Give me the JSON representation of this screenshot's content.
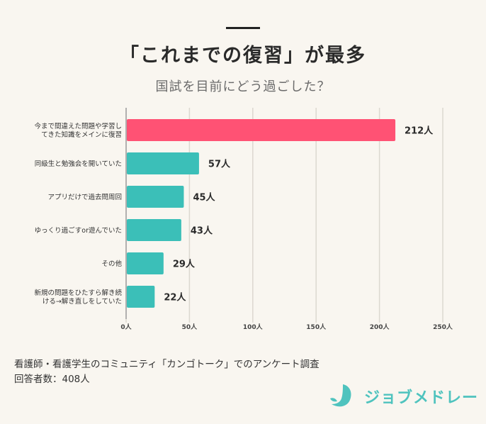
{
  "header": {
    "title": "「これまでの復習」が最多",
    "subtitle": "国試を目前にどう過ごした？"
  },
  "chart_data": {
    "type": "bar",
    "orientation": "horizontal",
    "categories": [
      [
        "今まで間違えた問題や学習し",
        "てきた知識をメインに復習"
      ],
      [
        "同級生と勉強会を開いていた"
      ],
      [
        "アプリだけで過去問周回"
      ],
      [
        "ゆっくり過ごすor遊んでいた"
      ],
      [
        "その他"
      ],
      [
        "新規の問題をひたすら解き続",
        "ける→解き直しをしていた"
      ]
    ],
    "values": [
      212,
      57,
      45,
      43,
      29,
      22
    ],
    "value_labels": [
      "212人",
      "57人",
      "45人",
      "43人",
      "29人",
      "22人"
    ],
    "highlight_index": 0,
    "xlim": [
      0,
      250
    ],
    "x_ticks": [
      0,
      50,
      100,
      150,
      200,
      250
    ],
    "x_tick_labels": [
      "0人",
      "50人",
      "100人",
      "150人",
      "200人",
      "250人"
    ],
    "grid": true,
    "colors": {
      "highlight": "#ff5274",
      "default": "#3bbfb8",
      "grid": "#dcd8d0",
      "axis": "#999999"
    }
  },
  "footer": {
    "source": "看護師・看護学生のコミュニティ「カンゴトーク」でのアンケート調査",
    "respondents": "回答者数：408人"
  },
  "logo": {
    "text": "ジョブメドレー",
    "color": "#4fc3be"
  }
}
